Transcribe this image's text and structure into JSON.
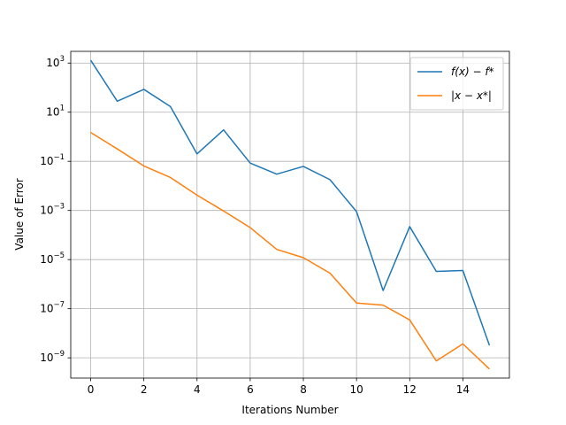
{
  "chart_data": {
    "type": "line",
    "title": "",
    "xlabel": "Iterations Number",
    "ylabel": "Value of Error",
    "yscale": "log",
    "xlim": [
      -0.75,
      15.75
    ],
    "ylim": [
      1.5e-10,
      3000
    ],
    "grid": true,
    "legend_position": "top-right",
    "x_ticks": [
      0,
      2,
      4,
      6,
      8,
      10,
      12,
      14
    ],
    "y_ticks": [
      {
        "value": 1e-09,
        "base": "10",
        "exp": "−9"
      },
      {
        "value": 1e-07,
        "base": "10",
        "exp": "−7"
      },
      {
        "value": 1e-05,
        "base": "10",
        "exp": "−5"
      },
      {
        "value": 0.001,
        "base": "10",
        "exp": "−3"
      },
      {
        "value": 0.1,
        "base": "10",
        "exp": "−1"
      },
      {
        "value": 10,
        "base": "10",
        "exp": "1"
      },
      {
        "value": 1000,
        "base": "10",
        "exp": "3"
      }
    ],
    "x": [
      0,
      1,
      2,
      3,
      4,
      5,
      6,
      7,
      8,
      9,
      10,
      11,
      12,
      13,
      14,
      15
    ],
    "series": [
      {
        "name": "f(x) − f*",
        "color": "#1f77b4",
        "values": [
          1300,
          28,
          85,
          17,
          0.2,
          1.9,
          0.085,
          0.03,
          0.062,
          0.018,
          0.0009,
          5.5e-07,
          0.00022,
          3.3e-06,
          3.6e-06,
          3.2e-09
        ]
      },
      {
        "name": "|x − x*|",
        "color": "#ff7f0e",
        "values": [
          1.5,
          0.32,
          0.065,
          0.022,
          0.0042,
          0.00095,
          0.0002,
          2.6e-05,
          1.2e-05,
          2.8e-06,
          1.7e-07,
          1.4e-07,
          3.5e-08,
          7.5e-10,
          3.7e-09,
          3.5e-10
        ]
      }
    ]
  }
}
